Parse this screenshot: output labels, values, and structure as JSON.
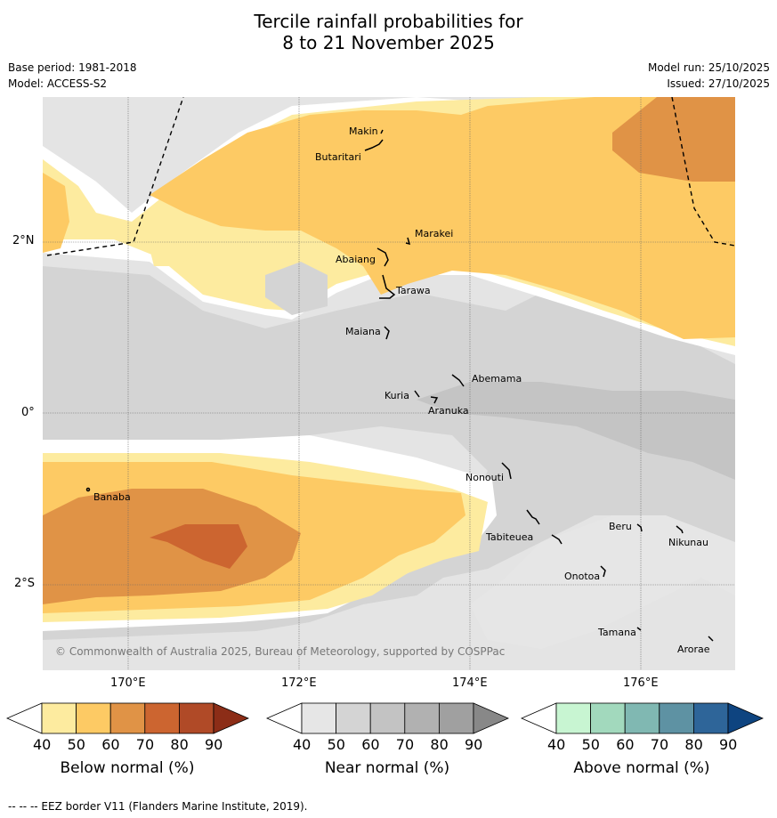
{
  "title_line1": "Tercile rainfall probabilities for",
  "title_line2": "8 to 21 November 2025",
  "base_period": "Base period: 1981-2018",
  "model": "Model: ACCESS-S2",
  "model_run": "Model run: 25/10/2025",
  "issued": "Issued: 27/10/2025",
  "copyright": "© Commonwealth of Australia 2025, Bureau of Meteorology, supported by COSPPac",
  "lat_labels": [
    "2°N",
    "0°",
    "2°S"
  ],
  "lon_labels": [
    "170°E",
    "172°E",
    "174°E",
    "176°E"
  ],
  "places": [
    "Makin",
    "Butaritari",
    "Marakei",
    "Abaiang",
    "Tarawa",
    "Maiana",
    "Abemama",
    "Kuria",
    "Aranuka",
    "Nonouti",
    "Banaba",
    "Beru",
    "Nikunau",
    "Tabiteuea",
    "Onotoa",
    "Tamana",
    "Arorae"
  ],
  "colorbars": [
    {
      "label": "Below normal (%)",
      "ticks": [
        "40",
        "50",
        "60",
        "70",
        "80",
        "90"
      ],
      "colors": [
        "#fdeb9f",
        "#fdca64",
        "#e09346",
        "#cc6530",
        "#b04a27",
        "#8c2d17"
      ]
    },
    {
      "label": "Near normal (%)",
      "ticks": [
        "40",
        "50",
        "60",
        "70",
        "80",
        "90"
      ],
      "colors": [
        "#e6e6e6",
        "#d4d4d4",
        "#c3c3c3",
        "#b1b1b1",
        "#a0a0a0",
        "#888888"
      ]
    },
    {
      "label": "Above normal (%)",
      "ticks": [
        "40",
        "50",
        "60",
        "70",
        "80",
        "90"
      ],
      "colors": [
        "#c8f5d2",
        "#a2d9bd",
        "#80b8b2",
        "#5e92a3",
        "#2e6599",
        "#0e4480"
      ]
    }
  ],
  "eez_note": "--  --  -- EEZ border V11 (Flanders Marine Institute, 2019)."
}
